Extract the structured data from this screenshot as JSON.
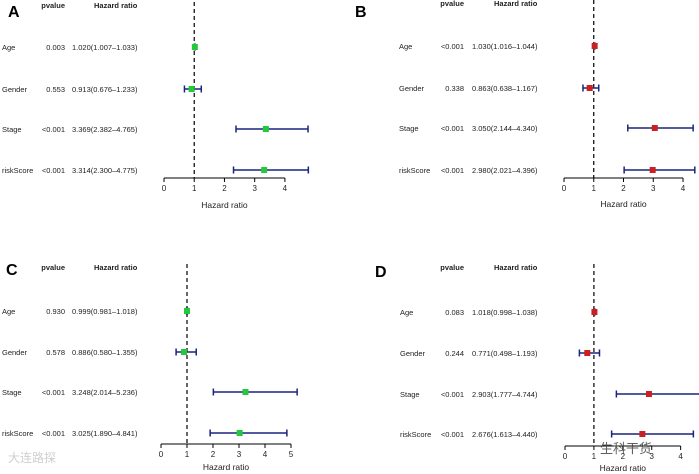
{
  "figure": {
    "col_pvalue": "pvalue",
    "col_hr": "Hazard ratio",
    "axis_label": "Hazard ratio",
    "colors": {
      "green": "#22c93a",
      "red": "#cc1f1f",
      "whisker": "#1a237e",
      "text": "#222222"
    }
  },
  "chart_data": [
    {
      "panel": "A",
      "type": "forest",
      "marker": "green",
      "title": "",
      "xlabel": "Hazard ratio",
      "ref_line": 1,
      "xlim": [
        0,
        4.4
      ],
      "xticks": [
        0,
        1,
        2,
        3,
        4
      ],
      "rows": [
        {
          "label": "Age",
          "pvalue": "0.003",
          "hr_text": "1.020(1.007–1.033)",
          "hr": 1.02,
          "lo": 1.007,
          "hi": 1.033
        },
        {
          "label": "Gender",
          "pvalue": "0.553",
          "hr_text": "0.913(0.676–1.233)",
          "hr": 0.913,
          "lo": 0.676,
          "hi": 1.233
        },
        {
          "label": "Stage",
          "pvalue": "<0.001",
          "hr_text": "3.369(2.382–4.765)",
          "hr": 3.369,
          "lo": 2.382,
          "hi": 4.765
        },
        {
          "label": "riskScore",
          "pvalue": "<0.001",
          "hr_text": "3.314(2.300–4.775)",
          "hr": 3.314,
          "lo": 2.3,
          "hi": 4.775
        }
      ]
    },
    {
      "panel": "B",
      "type": "forest",
      "marker": "red",
      "title": "",
      "xlabel": "Hazard ratio",
      "ref_line": 1,
      "xlim": [
        0,
        4.1
      ],
      "xticks": [
        0,
        1,
        2,
        3,
        4
      ],
      "rows": [
        {
          "label": "Age",
          "pvalue": "<0.001",
          "hr_text": "1.030(1.016–1.044)",
          "hr": 1.03,
          "lo": 1.016,
          "hi": 1.044
        },
        {
          "label": "Gender",
          "pvalue": "0.338",
          "hr_text": "0.863(0.638–1.167)",
          "hr": 0.863,
          "lo": 0.638,
          "hi": 1.167
        },
        {
          "label": "Stage",
          "pvalue": "<0.001",
          "hr_text": "3.050(2.144–4.340)",
          "hr": 3.05,
          "lo": 2.144,
          "hi": 4.34
        },
        {
          "label": "riskScore",
          "pvalue": "<0.001",
          "hr_text": "2.980(2.021–4.396)",
          "hr": 2.98,
          "lo": 2.021,
          "hi": 4.396
        }
      ]
    },
    {
      "panel": "C",
      "type": "forest",
      "marker": "green",
      "title": "",
      "xlabel": "Hazard ratio",
      "ref_line": 1,
      "xlim": [
        0,
        5
      ],
      "xticks": [
        0,
        1,
        2,
        3,
        4,
        5
      ],
      "rows": [
        {
          "label": "Age",
          "pvalue": "0.930",
          "hr_text": "0.999(0.981–1.018)",
          "hr": 0.999,
          "lo": 0.981,
          "hi": 1.018
        },
        {
          "label": "Gender",
          "pvalue": "0.578",
          "hr_text": "0.886(0.580–1.355)",
          "hr": 0.886,
          "lo": 0.58,
          "hi": 1.355
        },
        {
          "label": "Stage",
          "pvalue": "<0.001",
          "hr_text": "3.248(2.014–5.236)",
          "hr": 3.248,
          "lo": 2.014,
          "hi": 5.236
        },
        {
          "label": "riskScore",
          "pvalue": "<0.001",
          "hr_text": "3.025(1.890–4.841)",
          "hr": 3.025,
          "lo": 1.89,
          "hi": 4.841
        }
      ]
    },
    {
      "panel": "D",
      "type": "forest",
      "marker": "red",
      "title": "",
      "xlabel": "Hazard ratio",
      "ref_line": 1,
      "xlim": [
        0,
        4.6
      ],
      "xticks": [
        0,
        1,
        2,
        3,
        4
      ],
      "rows": [
        {
          "label": "Age",
          "pvalue": "0.083",
          "hr_text": "1.018(0.998–1.038)",
          "hr": 1.018,
          "lo": 0.998,
          "hi": 1.038
        },
        {
          "label": "Gender",
          "pvalue": "0.244",
          "hr_text": "0.771(0.498–1.193)",
          "hr": 0.771,
          "lo": 0.498,
          "hi": 1.193
        },
        {
          "label": "Stage",
          "pvalue": "<0.001",
          "hr_text": "2.903(1.777–4.744)",
          "hr": 2.903,
          "lo": 1.777,
          "hi": 4.744
        },
        {
          "label": "riskScore",
          "pvalue": "<0.001",
          "hr_text": "2.676(1.613–4.440)",
          "hr": 2.676,
          "lo": 1.613,
          "hi": 4.44
        }
      ]
    }
  ],
  "watermarks": {
    "left": "大连路探",
    "right": "生科干货"
  }
}
